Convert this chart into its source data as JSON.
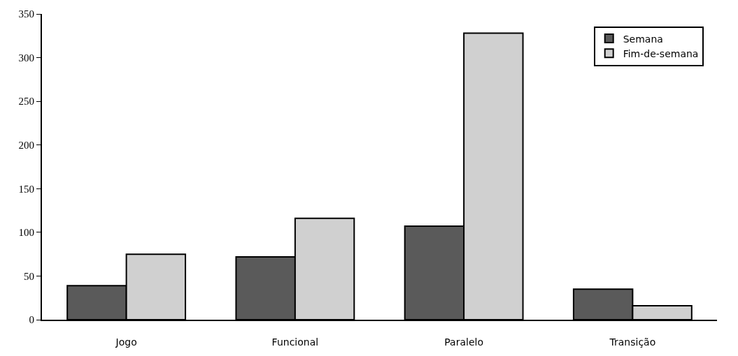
{
  "chart_data": {
    "type": "bar",
    "categories": [
      "Jogo",
      "Funcional",
      "Paralelo",
      "Transição"
    ],
    "series": [
      {
        "name": "Semana",
        "color": "#5a5a5a",
        "values": [
          39,
          72,
          107,
          35
        ]
      },
      {
        "name": "Fim-de-semana",
        "color": "#d0d0d0",
        "values": [
          75,
          116,
          328,
          16
        ]
      }
    ],
    "ylim": [
      0,
      350
    ],
    "yticks": [
      0,
      50,
      100,
      150,
      200,
      250,
      300,
      350
    ],
    "legend": "top right"
  }
}
